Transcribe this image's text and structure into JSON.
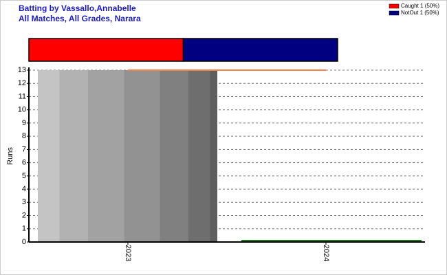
{
  "chart_data": {
    "type": "bar",
    "title": "Batting by Vassallo,Annabelle",
    "subtitle": "All Matches, All Grades, Narara",
    "y_label": "Runs",
    "categories": [
      "2023",
      "2024"
    ],
    "series": [
      {
        "values": [
          13,
          null
        ],
        "color": "#a0a0a0"
      },
      {
        "values": [
          null,
          0
        ],
        "color": "#117711"
      }
    ],
    "reference_line": {
      "value": 13,
      "color": "#ff8040"
    },
    "partition": [
      {
        "name": "Caught 1 (50%)",
        "value": 1,
        "color": "#ff0000"
      },
      {
        "name": "NotOut 1 (50%)",
        "value": 1,
        "color": "#000080"
      }
    ],
    "ylim": [
      0,
      13
    ],
    "yticks": [
      0,
      1,
      2,
      3,
      4,
      5,
      6,
      7,
      8,
      9,
      10,
      11,
      12,
      13
    ],
    "grid": true
  }
}
